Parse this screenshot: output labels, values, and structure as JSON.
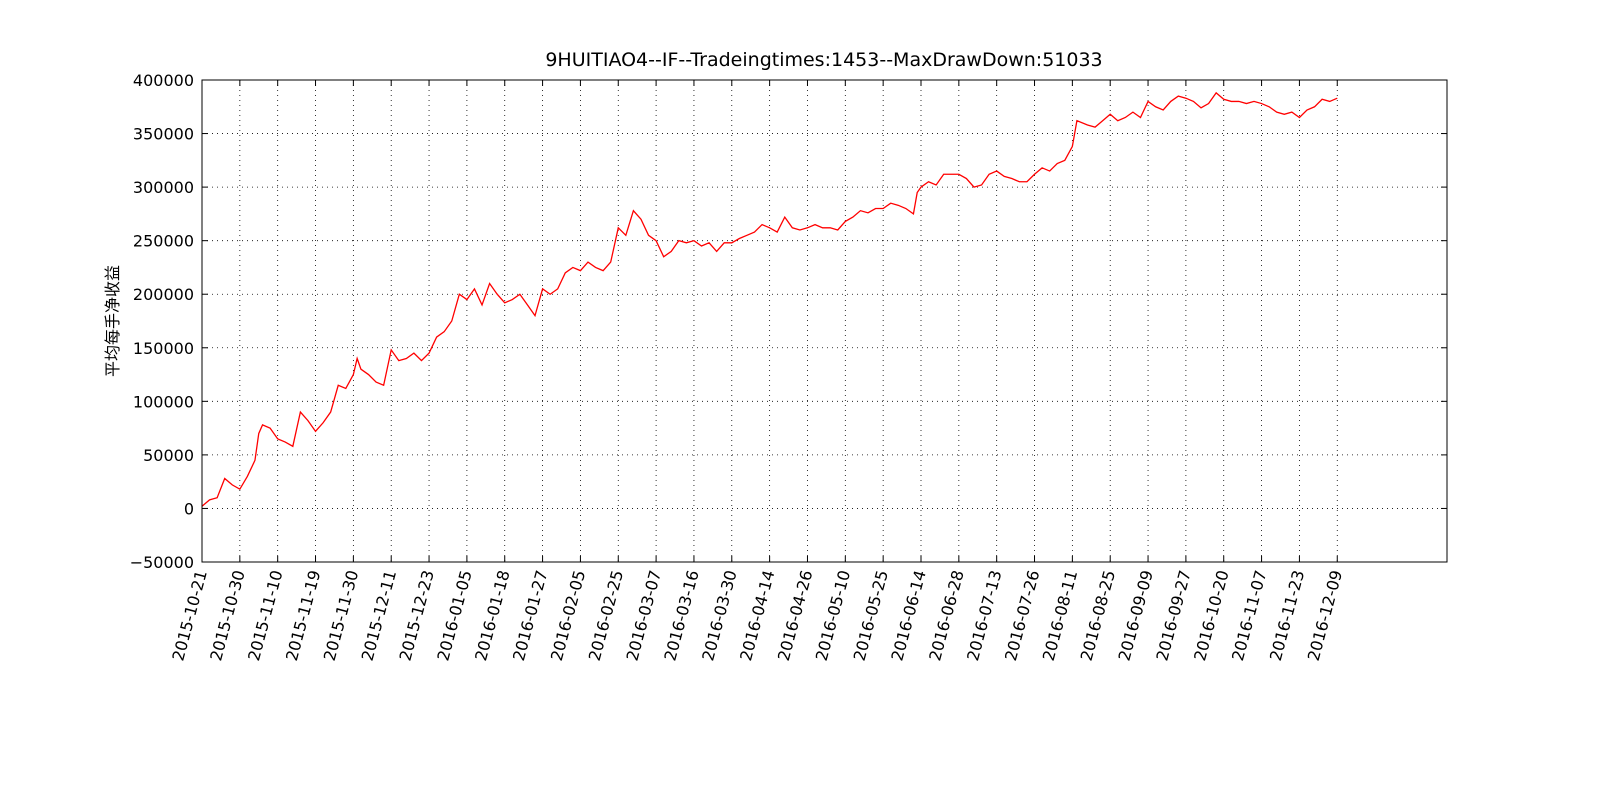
{
  "chart_data": {
    "type": "line",
    "title": "9HUITIAO4--IF--Tradeingtimes:1453--MaxDrawDown:51033",
    "ylabel": "平均每手净收益",
    "color": "#ff0000",
    "grid": true,
    "xlim": [
      0,
      1645
    ],
    "ylim": [
      -50000,
      400000
    ],
    "yticks": [
      {
        "value": -50000,
        "label": "−50000"
      },
      0,
      50000,
      100000,
      150000,
      200000,
      250000,
      300000,
      350000,
      400000
    ],
    "xticks": [
      {
        "value": 0,
        "label": "2015-10-21"
      },
      {
        "value": 50,
        "label": "2015-10-30"
      },
      {
        "value": 100,
        "label": "2015-11-10"
      },
      {
        "value": 150,
        "label": "2015-11-19"
      },
      {
        "value": 200,
        "label": "2015-11-30"
      },
      {
        "value": 250,
        "label": "2015-12-11"
      },
      {
        "value": 300,
        "label": "2015-12-23"
      },
      {
        "value": 350,
        "label": "2016-01-05"
      },
      {
        "value": 400,
        "label": "2016-01-18"
      },
      {
        "value": 450,
        "label": "2016-01-27"
      },
      {
        "value": 500,
        "label": "2016-02-05"
      },
      {
        "value": 550,
        "label": "2016-02-25"
      },
      {
        "value": 600,
        "label": "2016-03-07"
      },
      {
        "value": 650,
        "label": "2016-03-16"
      },
      {
        "value": 700,
        "label": "2016-03-30"
      },
      {
        "value": 750,
        "label": "2016-04-14"
      },
      {
        "value": 800,
        "label": "2016-04-26"
      },
      {
        "value": 850,
        "label": "2016-05-10"
      },
      {
        "value": 900,
        "label": "2016-05-25"
      },
      {
        "value": 950,
        "label": "2016-06-14"
      },
      {
        "value": 1000,
        "label": "2016-06-28"
      },
      {
        "value": 1050,
        "label": "2016-07-13"
      },
      {
        "value": 1100,
        "label": "2016-07-26"
      },
      {
        "value": 1150,
        "label": "2016-08-11"
      },
      {
        "value": 1200,
        "label": "2016-08-25"
      },
      {
        "value": 1250,
        "label": "2016-09-09"
      },
      {
        "value": 1300,
        "label": "2016-09-27"
      },
      {
        "value": 1350,
        "label": "2016-10-20"
      },
      {
        "value": 1400,
        "label": "2016-11-07"
      },
      {
        "value": 1450,
        "label": "2016-11-23"
      },
      {
        "value": 1500,
        "label": "2016-12-09"
      }
    ],
    "x": [
      0,
      10,
      20,
      30,
      40,
      50,
      60,
      70,
      75,
      80,
      90,
      100,
      110,
      120,
      130,
      140,
      150,
      160,
      170,
      180,
      190,
      200,
      205,
      210,
      220,
      230,
      240,
      250,
      260,
      270,
      280,
      290,
      300,
      310,
      320,
      330,
      340,
      350,
      360,
      370,
      380,
      390,
      400,
      410,
      420,
      430,
      440,
      450,
      460,
      470,
      480,
      490,
      500,
      510,
      520,
      530,
      540,
      550,
      560,
      570,
      580,
      590,
      600,
      610,
      620,
      630,
      640,
      650,
      660,
      670,
      680,
      690,
      700,
      710,
      720,
      730,
      740,
      750,
      760,
      770,
      780,
      790,
      800,
      810,
      820,
      830,
      840,
      850,
      860,
      870,
      880,
      890,
      900,
      910,
      920,
      930,
      940,
      945,
      950,
      960,
      970,
      980,
      990,
      1000,
      1010,
      1020,
      1030,
      1040,
      1050,
      1060,
      1070,
      1080,
      1090,
      1100,
      1110,
      1120,
      1130,
      1140,
      1150,
      1156,
      1170,
      1180,
      1190,
      1200,
      1210,
      1220,
      1230,
      1240,
      1250,
      1260,
      1270,
      1280,
      1290,
      1300,
      1310,
      1320,
      1330,
      1340,
      1350,
      1360,
      1370,
      1380,
      1390,
      1400,
      1410,
      1420,
      1430,
      1440,
      1450,
      1460,
      1470,
      1480,
      1490,
      1500
    ],
    "values": [
      2000,
      8000,
      10000,
      28000,
      22000,
      18000,
      30000,
      45000,
      70000,
      78000,
      75000,
      65000,
      62000,
      58000,
      90000,
      82000,
      72000,
      80000,
      90000,
      115000,
      112000,
      125000,
      140000,
      130000,
      125000,
      118000,
      115000,
      148000,
      138000,
      140000,
      145000,
      138000,
      145000,
      160000,
      165000,
      175000,
      200000,
      195000,
      205000,
      190000,
      210000,
      200000,
      192000,
      195000,
      200000,
      190000,
      180000,
      205000,
      200000,
      205000,
      220000,
      225000,
      222000,
      230000,
      225000,
      222000,
      230000,
      262000,
      255000,
      278000,
      270000,
      255000,
      250000,
      235000,
      240000,
      250000,
      248000,
      250000,
      245000,
      248000,
      240000,
      248000,
      248000,
      252000,
      255000,
      258000,
      265000,
      262000,
      258000,
      272000,
      262000,
      260000,
      262000,
      265000,
      262000,
      262000,
      260000,
      268000,
      272000,
      278000,
      276000,
      280000,
      280000,
      285000,
      283000,
      280000,
      275000,
      295000,
      300000,
      305000,
      302000,
      312000,
      312000,
      312000,
      308000,
      300000,
      302000,
      312000,
      315000,
      310000,
      308000,
      305000,
      305000,
      312000,
      318000,
      315000,
      322000,
      325000,
      338000,
      362000,
      358000,
      356000,
      362000,
      368000,
      362000,
      365000,
      370000,
      365000,
      380000,
      375000,
      372000,
      380000,
      385000,
      383000,
      380000,
      374000,
      378000,
      388000,
      382000,
      380000,
      380000,
      378000,
      380000,
      378000,
      375000,
      370000,
      368000,
      370000,
      365000,
      372000,
      375000,
      382000,
      380000,
      383000
    ]
  }
}
